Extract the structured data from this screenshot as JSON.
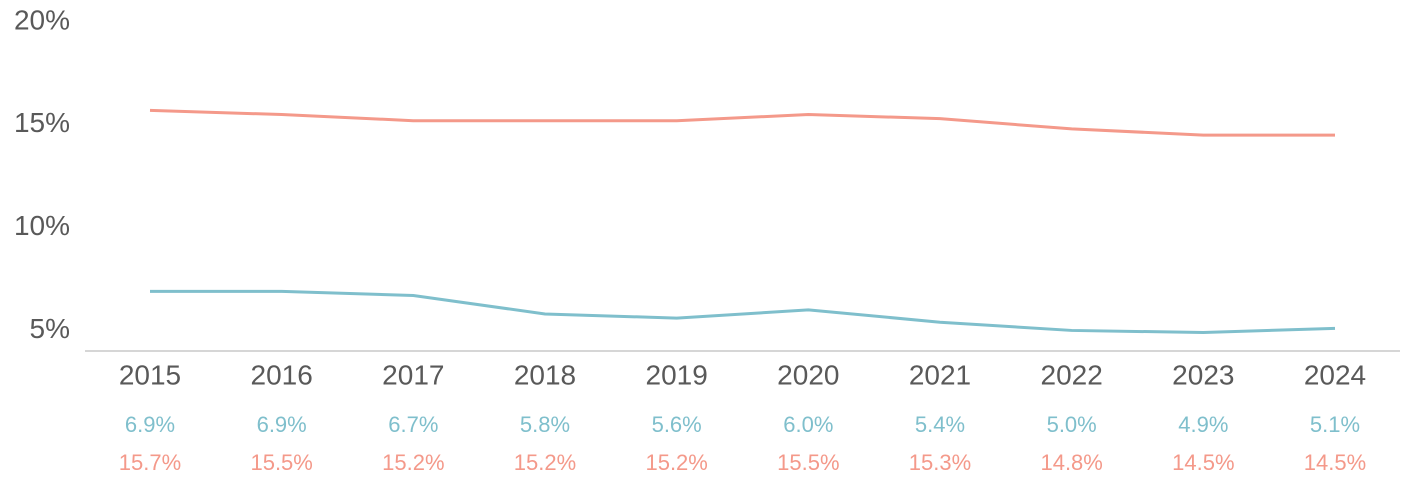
{
  "chart_data": {
    "type": "line",
    "categories": [
      "2015",
      "2016",
      "2017",
      "2018",
      "2019",
      "2020",
      "2021",
      "2022",
      "2023",
      "2024"
    ],
    "series": [
      {
        "color": "#7fbfcc",
        "values": [
          6.9,
          6.9,
          6.7,
          5.8,
          5.6,
          6.0,
          5.4,
          5.0,
          4.9,
          5.1
        ],
        "value_labels": [
          "6.9%",
          "6.9%",
          "6.7%",
          "5.8%",
          "5.6%",
          "6.0%",
          "5.4%",
          "5.0%",
          "4.9%",
          "5.1%"
        ]
      },
      {
        "color": "#f4998a",
        "values": [
          15.7,
          15.5,
          15.2,
          15.2,
          15.2,
          15.5,
          15.3,
          14.8,
          14.5,
          14.5
        ],
        "value_labels": [
          "15.7%",
          "15.5%",
          "15.2%",
          "15.2%",
          "15.2%",
          "15.5%",
          "15.3%",
          "14.8%",
          "14.5%",
          "14.5%"
        ]
      }
    ],
    "ylim": [
      4,
      20
    ],
    "yticks": [
      {
        "value": 5,
        "label": "5%"
      },
      {
        "value": 10,
        "label": "10%"
      },
      {
        "value": 15,
        "label": "15%"
      },
      {
        "value": 20,
        "label": "20%"
      }
    ],
    "grid": false
  }
}
